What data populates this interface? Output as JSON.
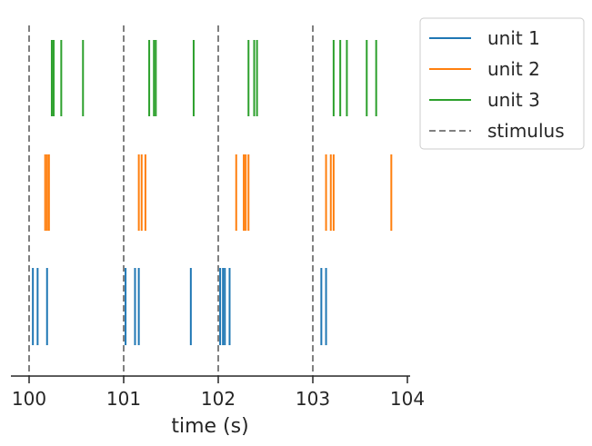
{
  "chart_data": {
    "type": "scatter",
    "subtype": "raster",
    "title": "",
    "xlabel": "time (s)",
    "ylabel": "",
    "xlim": [
      99.8,
      104.0
    ],
    "xticks": [
      "100",
      "101",
      "102",
      "103",
      "104"
    ],
    "grid": false,
    "legend_position": "outside-top-right",
    "series": [
      {
        "name": "unit 1",
        "color": "#1f77b4",
        "spikes": [
          100.04,
          100.09,
          100.19,
          101.02,
          101.12,
          101.16,
          101.71,
          102.02,
          102.05,
          102.07,
          102.12,
          103.09,
          103.14
        ]
      },
      {
        "name": "unit 2",
        "color": "#ff7f0e",
        "spikes": [
          100.17,
          100.19,
          100.21,
          101.16,
          101.19,
          101.23,
          102.19,
          102.27,
          102.29,
          102.32,
          103.14,
          103.19,
          103.22,
          103.83
        ]
      },
      {
        "name": "unit 3",
        "color": "#2ca02c",
        "spikes": [
          100.24,
          100.26,
          100.34,
          100.57,
          101.27,
          101.32,
          101.34,
          101.74,
          102.32,
          102.38,
          102.41,
          103.22,
          103.29,
          103.36,
          103.57,
          103.67
        ]
      }
    ],
    "stimulus": {
      "name": "stimulus",
      "color": "#808080",
      "times": [
        100,
        101,
        102,
        103
      ]
    }
  }
}
